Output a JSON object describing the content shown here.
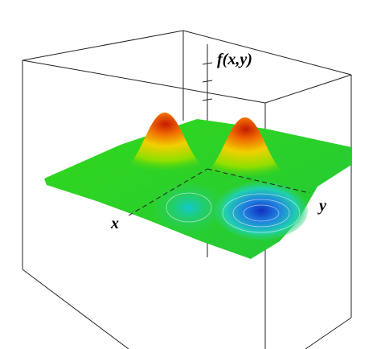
{
  "axes": {
    "z_label": "f(x,y)",
    "x_label": "x",
    "y_label": "y"
  }
}
